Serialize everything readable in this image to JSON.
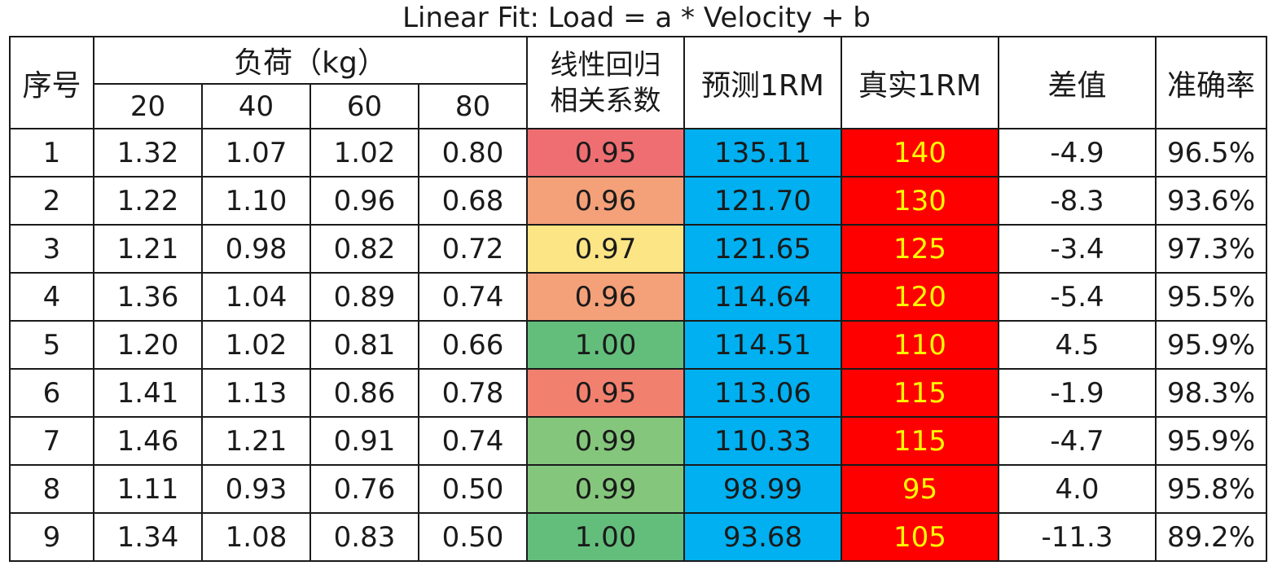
{
  "title": "Linear Fit: Load = a * Velocity + b",
  "headers": {
    "index": "序号",
    "load_group": "负荷（kg）",
    "loads": [
      "20",
      "40",
      "60",
      "80"
    ],
    "r_line1": "线性回归",
    "r_line2": "相关系数",
    "predicted": "预测1RM",
    "actual": "真实1RM",
    "diff": "差值",
    "accuracy": "准确率"
  },
  "rows": [
    {
      "idx": "1",
      "v": [
        "1.32",
        "1.07",
        "1.02",
        "0.80"
      ],
      "r": "0.95",
      "r_color": "#ee6e72",
      "pred": "135.11",
      "actual": "140",
      "diff": "-4.9",
      "acc": "96.5%"
    },
    {
      "idx": "2",
      "v": [
        "1.22",
        "1.10",
        "0.96",
        "0.68"
      ],
      "r": "0.96",
      "r_color": "#f4a079",
      "pred": "121.70",
      "actual": "130",
      "diff": "-8.3",
      "acc": "93.6%"
    },
    {
      "idx": "3",
      "v": [
        "1.21",
        "0.98",
        "0.82",
        "0.72"
      ],
      "r": "0.97",
      "r_color": "#fce584",
      "pred": "121.65",
      "actual": "125",
      "diff": "-3.4",
      "acc": "97.3%"
    },
    {
      "idx": "4",
      "v": [
        "1.36",
        "1.04",
        "0.89",
        "0.74"
      ],
      "r": "0.96",
      "r_color": "#f4a079",
      "pred": "114.64",
      "actual": "120",
      "diff": "-5.4",
      "acc": "95.5%"
    },
    {
      "idx": "5",
      "v": [
        "1.20",
        "1.02",
        "0.81",
        "0.66"
      ],
      "r": "1.00",
      "r_color": "#63be7b",
      "pred": "114.51",
      "actual": "110",
      "diff": "4.5",
      "acc": "95.9%"
    },
    {
      "idx": "6",
      "v": [
        "1.41",
        "1.13",
        "0.86",
        "0.78"
      ],
      "r": "0.95",
      "r_color": "#f2806e",
      "pred": "113.06",
      "actual": "115",
      "diff": "-1.9",
      "acc": "98.3%"
    },
    {
      "idx": "7",
      "v": [
        "1.46",
        "1.21",
        "0.91",
        "0.74"
      ],
      "r": "0.99",
      "r_color": "#84c77c",
      "pred": "110.33",
      "actual": "115",
      "diff": "-4.7",
      "acc": "95.9%"
    },
    {
      "idx": "8",
      "v": [
        "1.11",
        "0.93",
        "0.76",
        "0.50"
      ],
      "r": "0.99",
      "r_color": "#84c77c",
      "pred": "98.99",
      "actual": "95",
      "diff": "4.0",
      "acc": "95.8%"
    },
    {
      "idx": "9",
      "v": [
        "1.34",
        "1.08",
        "0.83",
        "0.50"
      ],
      "r": "1.00",
      "r_color": "#63be7b",
      "pred": "93.68",
      "actual": "105",
      "diff": "-11.3",
      "acc": "89.2%"
    }
  ],
  "colors": {
    "predicted_fill": "#00b0f0",
    "actual_fill": "#ff0000",
    "actual_text": "#ffff00"
  }
}
